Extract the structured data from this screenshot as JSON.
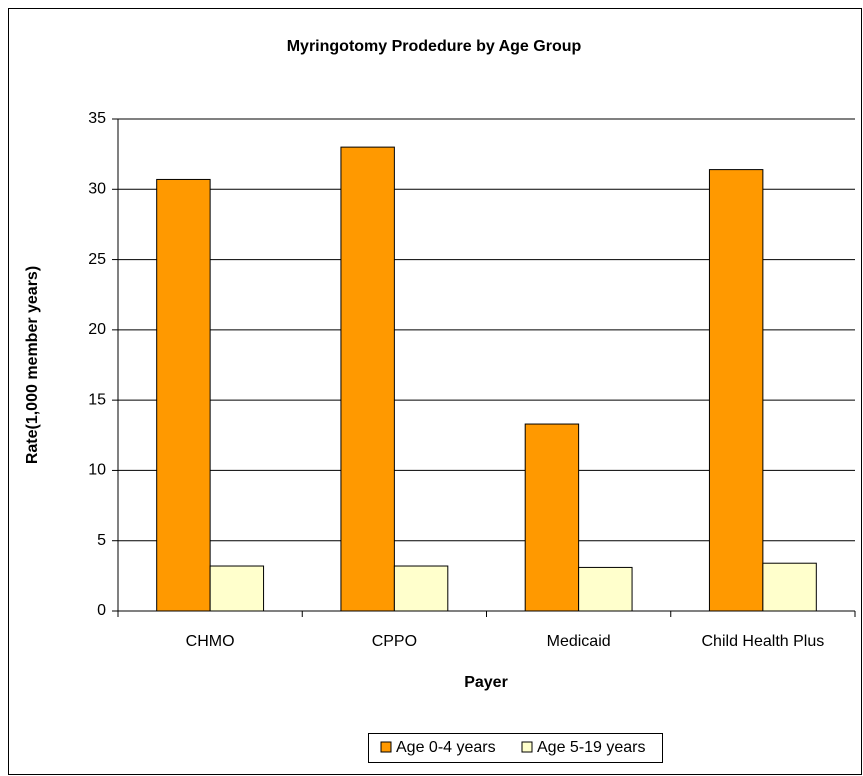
{
  "chart_data": {
    "type": "bar",
    "title": "Myringotomy Prodedure by Age Group",
    "x_label": "Payer",
    "y_label": "Rate(1,000 member years)",
    "categories": [
      "CHMO",
      "CPPO",
      "Medicaid",
      "Child Health Plus"
    ],
    "series": [
      {
        "name": "Age 0-4 years",
        "color": "#ff9900",
        "values": [
          30.7,
          33.0,
          13.3,
          31.4
        ]
      },
      {
        "name": "Age 5-19 years",
        "color": "#ffffcc",
        "values": [
          3.2,
          3.2,
          3.1,
          3.4
        ]
      }
    ],
    "ylim": [
      0,
      35
    ],
    "yticks": [
      0,
      5,
      10,
      15,
      20,
      25,
      30,
      35
    ],
    "grid": true,
    "legend": "bottom"
  }
}
